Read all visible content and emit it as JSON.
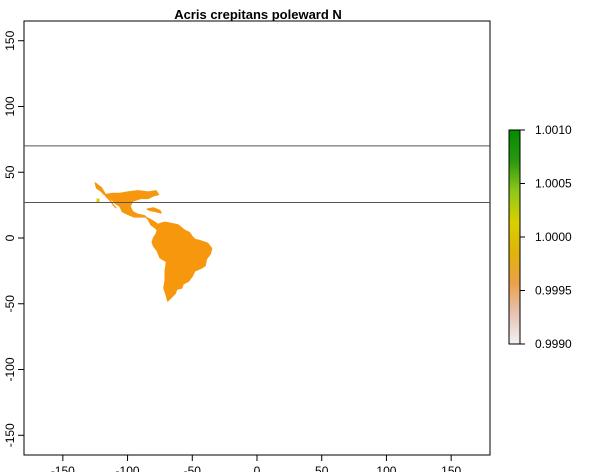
{
  "chart_data": {
    "type": "heatmap",
    "title": "Acris crepitans poleward N",
    "xlabel": "",
    "ylabel": "",
    "xlim": [
      -180,
      180
    ],
    "ylim": [
      -165,
      165
    ],
    "x_ticks": [
      -150,
      -100,
      -50,
      0,
      50,
      100,
      150
    ],
    "y_ticks": [
      -150,
      -100,
      -50,
      0,
      50,
      100,
      150
    ],
    "x_tick_labels": [
      "-150",
      "-100",
      "-50",
      "0",
      "50",
      "100",
      "150"
    ],
    "y_tick_labels": [
      "-150",
      "-100",
      "-50",
      "0",
      "50",
      "100",
      "150"
    ],
    "horizontal_lines": [
      70,
      27
    ],
    "region_value": 0.9998,
    "region_color": "#f7970d",
    "colorbar": {
      "min": 0.999,
      "max": 1.001,
      "ticks": [
        1.001,
        1.0005,
        1.0,
        0.9995,
        0.999
      ],
      "tick_labels": [
        "1.0010",
        "1.0005",
        "1.0000",
        "0.9995",
        "0.9990"
      ],
      "colors": [
        "#f2f2f2",
        "#e8c2b2",
        "#eba04a",
        "#e0b40a",
        "#d8d000",
        "#8fc818",
        "#2a9810",
        "#008c00"
      ]
    }
  }
}
